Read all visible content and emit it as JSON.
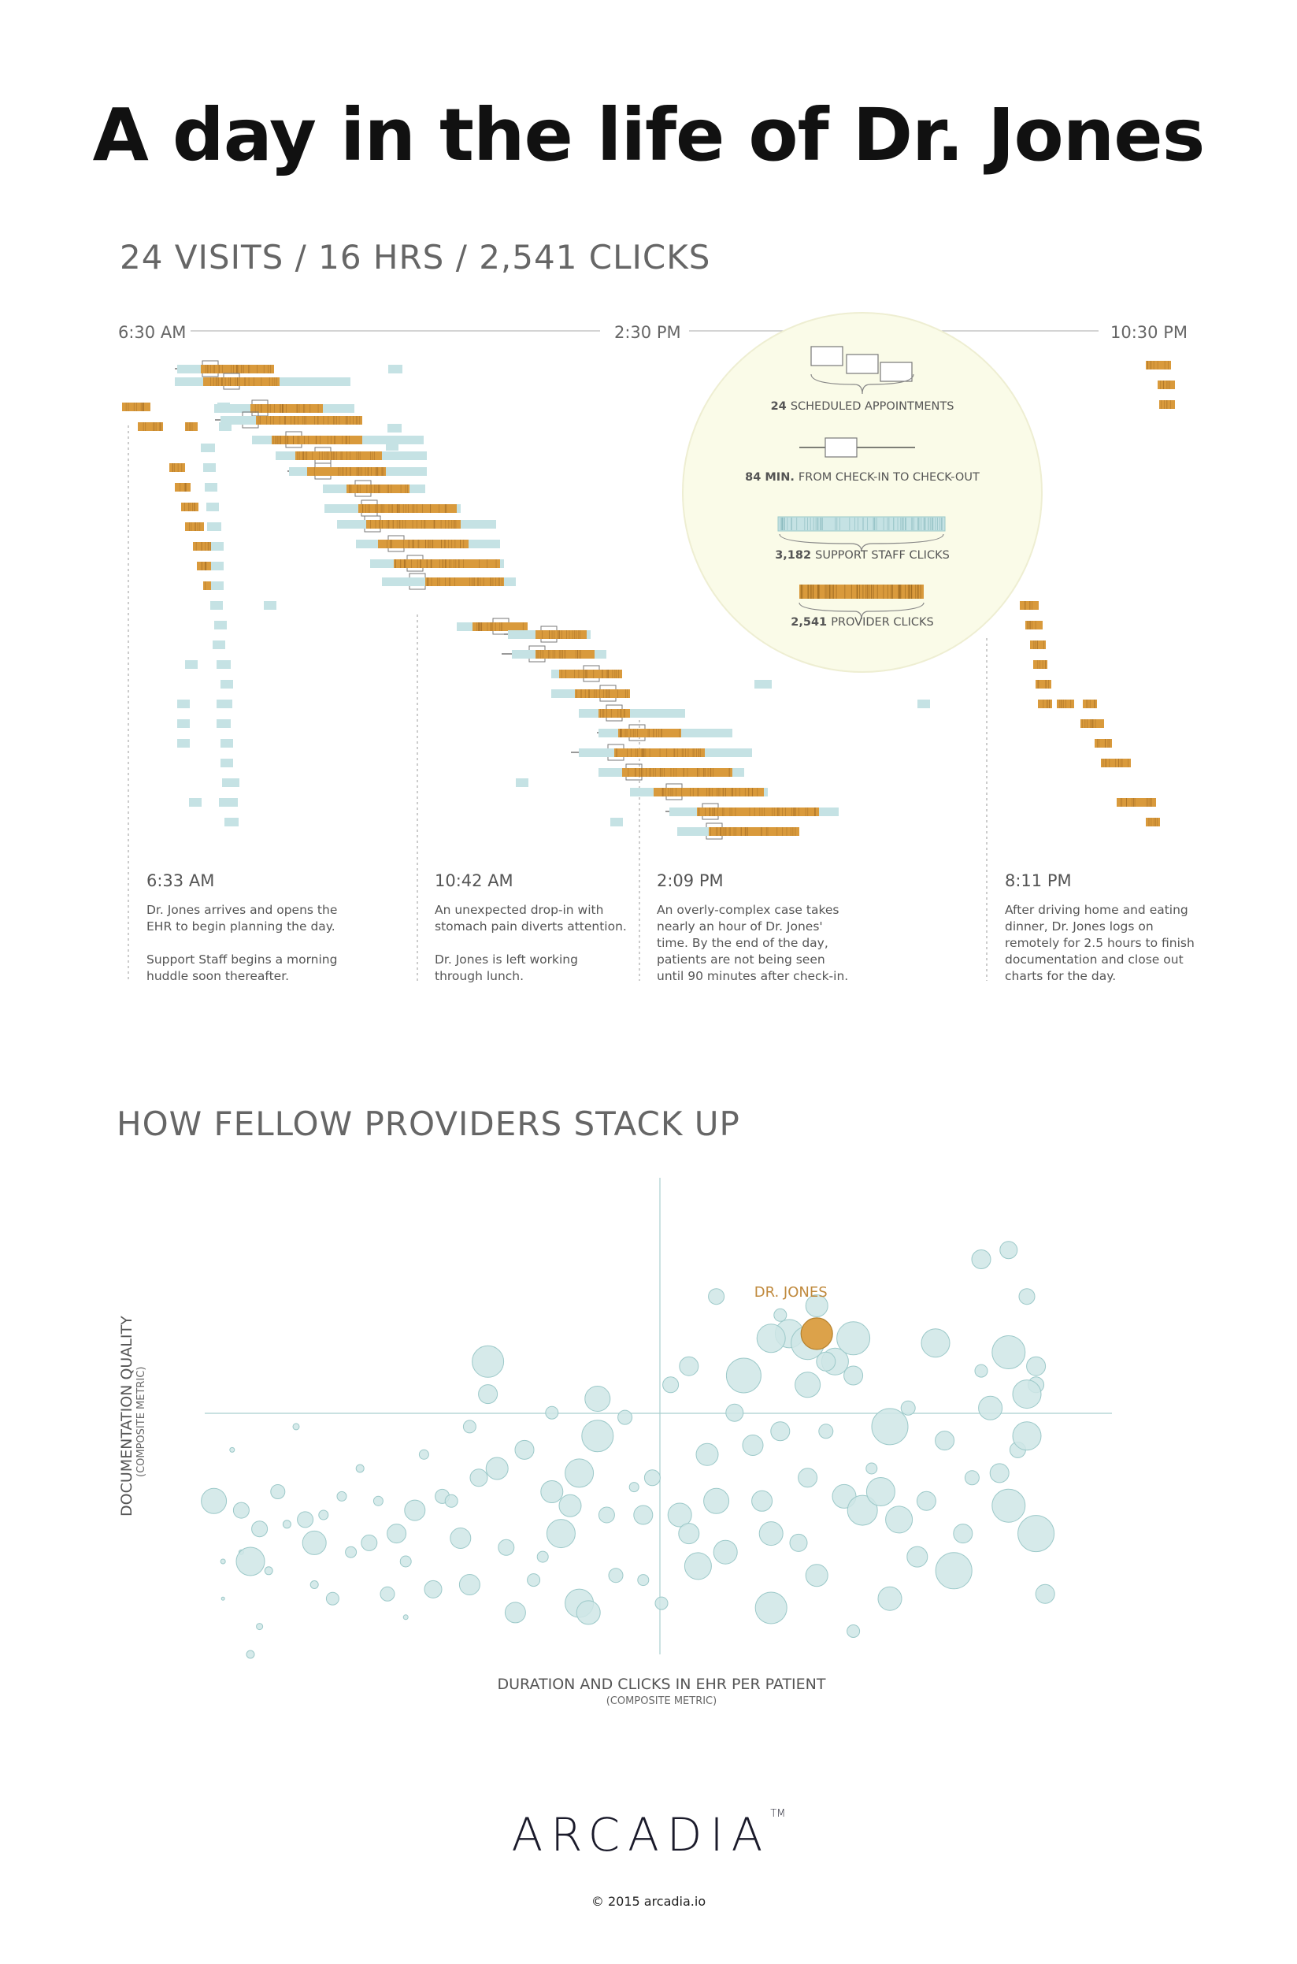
{
  "title": "A day in the life of Dr. Jones",
  "subtitle": "24 VISITS / 16 HRS / 2,541 CLICKS",
  "timeline": {
    "start_label": "6:30 AM",
    "mid_label": "2:30 PM",
    "end_label": "10:30 PM"
  },
  "legend": {
    "items": [
      {
        "value": "24",
        "text": "SCHEDULED APPOINTMENTS"
      },
      {
        "value": "84 MIN.",
        "text": "FROM CHECK-IN TO CHECK-OUT"
      },
      {
        "value": "3,182",
        "text": "SUPPORT STAFF CLICKS"
      },
      {
        "value": "2,541",
        "text": "PROVIDER CLICKS"
      }
    ]
  },
  "annotations": [
    {
      "time": "6:33 AM",
      "text": "Dr. Jones arrives and opens the\nEHR to begin planning the day.\n\nSupport Staff begins a morning\nhuddle soon thereafter."
    },
    {
      "time": "10:42 AM",
      "text": "An unexpected drop-in with\nstomach pain diverts attention.\n\nDr. Jones is left working\nthrough lunch."
    },
    {
      "time": "2:09 PM",
      "text": "An overly-complex case takes\nnearly an hour of Dr. Jones'\ntime. By the end of the day,\npatients are not being seen\nuntil 90 minutes after check-in."
    },
    {
      "time": "8:11 PM",
      "text": "After driving home and eating\ndinner, Dr. Jones logs on\nremotely for 2.5 hours to finish\ndocumentation and close out\ncharts for the day."
    }
  ],
  "section2_title": "HOW FELLOW PROVIDERS STACK UP",
  "colors": {
    "provider": "#d99a3c",
    "staff": "#c5e2e4",
    "bubble": "#cfe6e6",
    "bubble_stroke": "#9cc9c9",
    "highlight": "#dca24a",
    "legend_circle": "#fafbe8"
  },
  "chart_data": [
    {
      "type": "timeline",
      "title": "24 VISITS / 16 HRS / 2,541 CLICKS",
      "x_range": [
        "6:30 AM",
        "10:30 PM"
      ],
      "series": [
        {
          "name": "SCHEDULED APPOINTMENTS",
          "values": [
            24
          ]
        },
        {
          "name": "FROM CHECK-IN TO CHECK-OUT",
          "values": [
            84
          ]
        },
        {
          "name": "SUPPORT STAFF CLICKS",
          "values": [
            3182
          ]
        },
        {
          "name": "PROVIDER CLICKS",
          "values": [
            2541
          ]
        }
      ]
    },
    {
      "type": "scatter",
      "title": "HOW FELLOW PROVIDERS STACK UP",
      "xlabel": "DURATION AND CLICKS IN EHR PER PATIENT",
      "xlabel_sub": "(COMPOSITE METRIC)",
      "ylabel": "DOCUMENTATION QUALITY",
      "ylabel_sub": "(COMPOSITE METRIC)",
      "highlight_label": "DR. JONES",
      "highlight": {
        "x": 0.67,
        "y": 0.69,
        "r": 20
      }
    }
  ],
  "footer": {
    "logo": "ARCADIA",
    "trademark": "TM",
    "copyright": "© 2015 arcadia.io"
  }
}
